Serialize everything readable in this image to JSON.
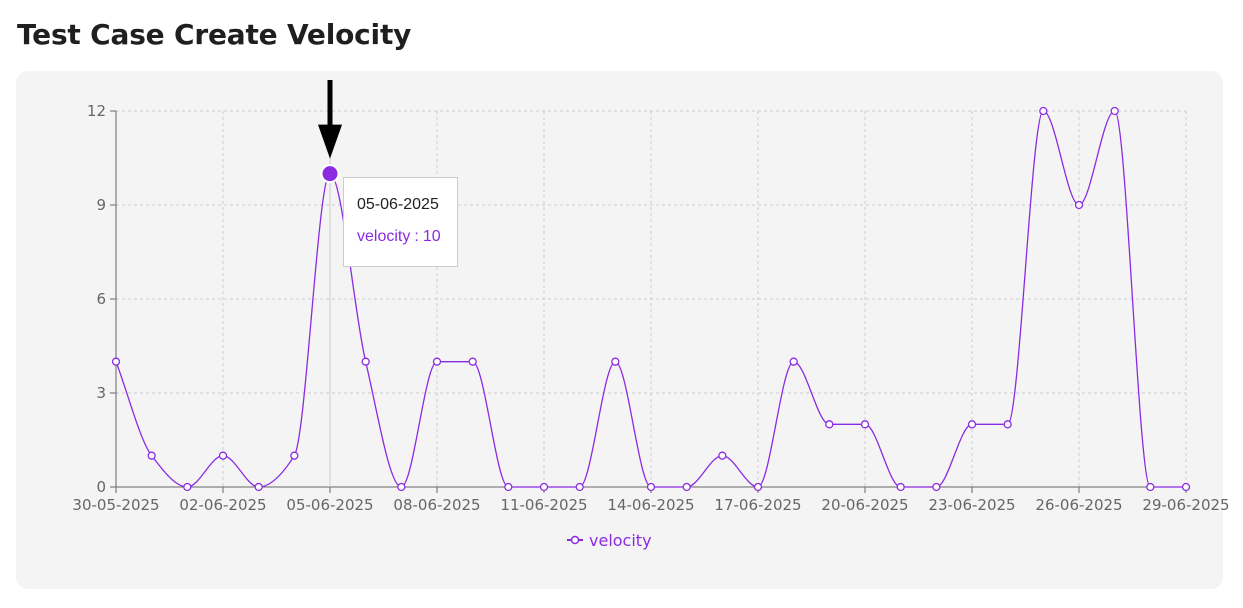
{
  "page": {
    "title": "Test Case Create Velocity"
  },
  "colors": {
    "series": "#8a2be2",
    "card_background": "#f4f4f4",
    "grid": "#cccccc",
    "axis": "#666666"
  },
  "tooltip": {
    "label": "05-06-2025",
    "series_name": "velocity",
    "separator": ":",
    "value": "10"
  },
  "annotation": {
    "icon": "down-arrow-icon",
    "target": "05-06-2025"
  },
  "chart_data": {
    "type": "line",
    "title": "",
    "xlabel": "",
    "ylabel": "",
    "ylim": [
      0,
      12
    ],
    "yticks": [
      0,
      3,
      6,
      9,
      12
    ],
    "grid": true,
    "legend_placement": "bottom-center",
    "curve": "monotone",
    "x": [
      "30-05-2025",
      "31-05-2025",
      "01-06-2025",
      "02-06-2025",
      "03-06-2025",
      "04-06-2025",
      "05-06-2025",
      "06-06-2025",
      "07-06-2025",
      "08-06-2025",
      "09-06-2025",
      "10-06-2025",
      "11-06-2025",
      "12-06-2025",
      "13-06-2025",
      "14-06-2025",
      "15-06-2025",
      "16-06-2025",
      "17-06-2025",
      "18-06-2025",
      "19-06-2025",
      "20-06-2025",
      "21-06-2025",
      "22-06-2025",
      "23-06-2025",
      "24-06-2025",
      "25-06-2025",
      "26-06-2025",
      "27-06-2025",
      "28-06-2025",
      "29-06-2025"
    ],
    "xticks": [
      "30-05-2025",
      "02-06-2025",
      "05-06-2025",
      "08-06-2025",
      "11-06-2025",
      "14-06-2025",
      "17-06-2025",
      "20-06-2025",
      "23-06-2025",
      "26-06-2025",
      "29-06-2025"
    ],
    "series": [
      {
        "name": "velocity",
        "values": [
          4,
          1,
          0,
          1,
          0,
          1,
          10,
          4,
          0,
          4,
          4,
          0,
          0,
          0,
          4,
          0,
          0,
          1,
          0,
          4,
          2,
          2,
          0,
          0,
          2,
          2,
          12,
          9,
          12,
          0,
          0
        ]
      }
    ],
    "active_point": "05-06-2025"
  }
}
